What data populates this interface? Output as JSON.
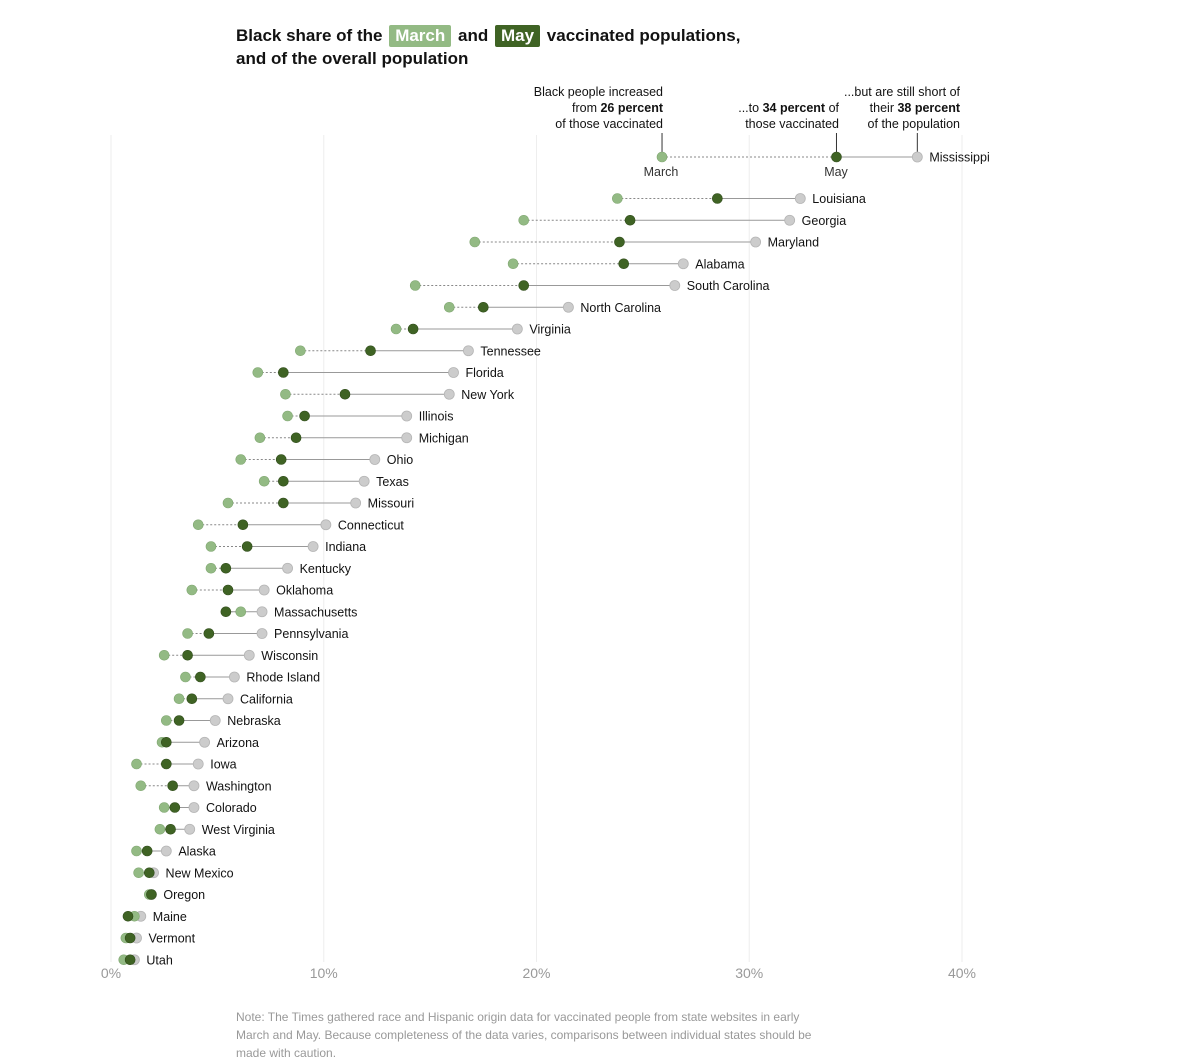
{
  "title": {
    "prefix": "Black share of the",
    "march_chip": "March",
    "and": "and",
    "may_chip": "May",
    "suffix": "vaccinated populations,",
    "line2": "and of the overall population"
  },
  "annotations": {
    "march": [
      "Black people increased",
      "from ",
      "26 percent",
      "of those vaccinated"
    ],
    "may": [
      "...to ",
      "34 percent",
      " of",
      "those vaccinated"
    ],
    "population": [
      "...but are still short of",
      "their ",
      "38 percent",
      "of the population"
    ],
    "march_point_label": "March",
    "may_point_label": "May"
  },
  "note": "Note: The Times gathered race and Hispanic origin data for vaccinated people from state websites in early March and May. Because completeness of the data varies, comparisons between individual states should be made with caution.",
  "colors": {
    "march": "#93ba84",
    "may": "#3f6324",
    "population": "#cccccc",
    "grid": "#eeeeee"
  },
  "chart_data": {
    "type": "scatter",
    "title": "Black share of the March and May vaccinated populations, and of the overall population",
    "xlabel": "",
    "ylabel": "",
    "xlim": [
      0,
      40
    ],
    "x_ticks": [
      "0%",
      "10%",
      "20%",
      "30%",
      "40%"
    ],
    "x_tick_values": [
      0,
      10,
      20,
      30,
      40
    ],
    "grid": true,
    "series_names": [
      "March",
      "May",
      "Population"
    ],
    "states": [
      {
        "name": "Mississippi",
        "march": 25.9,
        "may": 34.1,
        "population": 37.9
      },
      {
        "name": "Louisiana",
        "march": 23.8,
        "may": 28.5,
        "population": 32.4
      },
      {
        "name": "Georgia",
        "march": 19.4,
        "may": 24.4,
        "population": 31.9
      },
      {
        "name": "Maryland",
        "march": 17.1,
        "may": 23.9,
        "population": 30.3
      },
      {
        "name": "Alabama",
        "march": 18.9,
        "may": 24.1,
        "population": 26.9
      },
      {
        "name": "South Carolina",
        "march": 14.3,
        "may": 19.4,
        "population": 26.5
      },
      {
        "name": "North Carolina",
        "march": 15.9,
        "may": 17.5,
        "population": 21.5
      },
      {
        "name": "Virginia",
        "march": 13.4,
        "may": 14.2,
        "population": 19.1
      },
      {
        "name": "Tennessee",
        "march": 8.9,
        "may": 12.2,
        "population": 16.8
      },
      {
        "name": "Florida",
        "march": 6.9,
        "may": 8.1,
        "population": 16.1
      },
      {
        "name": "New York",
        "march": 8.2,
        "may": 11.0,
        "population": 15.9
      },
      {
        "name": "Illinois",
        "march": 8.3,
        "may": 9.1,
        "population": 13.9
      },
      {
        "name": "Michigan",
        "march": 7.0,
        "may": 8.7,
        "population": 13.9
      },
      {
        "name": "Ohio",
        "march": 6.1,
        "may": 8.0,
        "population": 12.4
      },
      {
        "name": "Texas",
        "march": 7.2,
        "may": 8.1,
        "population": 11.9
      },
      {
        "name": "Missouri",
        "march": 5.5,
        "may": 8.1,
        "population": 11.5
      },
      {
        "name": "Connecticut",
        "march": 4.1,
        "may": 6.2,
        "population": 10.1
      },
      {
        "name": "Indiana",
        "march": 4.7,
        "may": 6.4,
        "population": 9.5
      },
      {
        "name": "Kentucky",
        "march": 4.7,
        "may": 5.4,
        "population": 8.3
      },
      {
        "name": "Oklahoma",
        "march": 3.8,
        "may": 5.5,
        "population": 7.2
      },
      {
        "name": "Massachusetts",
        "march": 6.1,
        "may": 5.4,
        "population": 7.1
      },
      {
        "name": "Pennsylvania",
        "march": 3.6,
        "may": 4.6,
        "population": 7.1
      },
      {
        "name": "Wisconsin",
        "march": 2.5,
        "may": 3.6,
        "population": 6.5
      },
      {
        "name": "Rhode Island",
        "march": 3.5,
        "may": 4.2,
        "population": 5.8
      },
      {
        "name": "California",
        "march": 3.2,
        "may": 3.8,
        "population": 5.5
      },
      {
        "name": "Nebraska",
        "march": 2.6,
        "may": 3.2,
        "population": 4.9
      },
      {
        "name": "Arizona",
        "march": 2.4,
        "may": 2.6,
        "population": 4.4
      },
      {
        "name": "Iowa",
        "march": 1.2,
        "may": 2.6,
        "population": 4.1
      },
      {
        "name": "Washington",
        "march": 1.4,
        "may": 2.9,
        "population": 3.9
      },
      {
        "name": "Colorado",
        "march": 2.5,
        "may": 3.0,
        "population": 3.9
      },
      {
        "name": "West Virginia",
        "march": 2.3,
        "may": 2.8,
        "population": 3.7
      },
      {
        "name": "Alaska",
        "march": 1.2,
        "may": 1.7,
        "population": 2.6
      },
      {
        "name": "New Mexico",
        "march": 1.3,
        "may": 1.8,
        "population": 2.0
      },
      {
        "name": "Oregon",
        "march": 1.8,
        "may": 1.9,
        "population": 1.9
      },
      {
        "name": "Maine",
        "march": 1.1,
        "may": 0.8,
        "population": 1.4
      },
      {
        "name": "Vermont",
        "march": 0.7,
        "may": 0.9,
        "population": 1.2
      },
      {
        "name": "Utah",
        "march": 0.6,
        "may": 0.9,
        "population": 1.1
      }
    ]
  }
}
